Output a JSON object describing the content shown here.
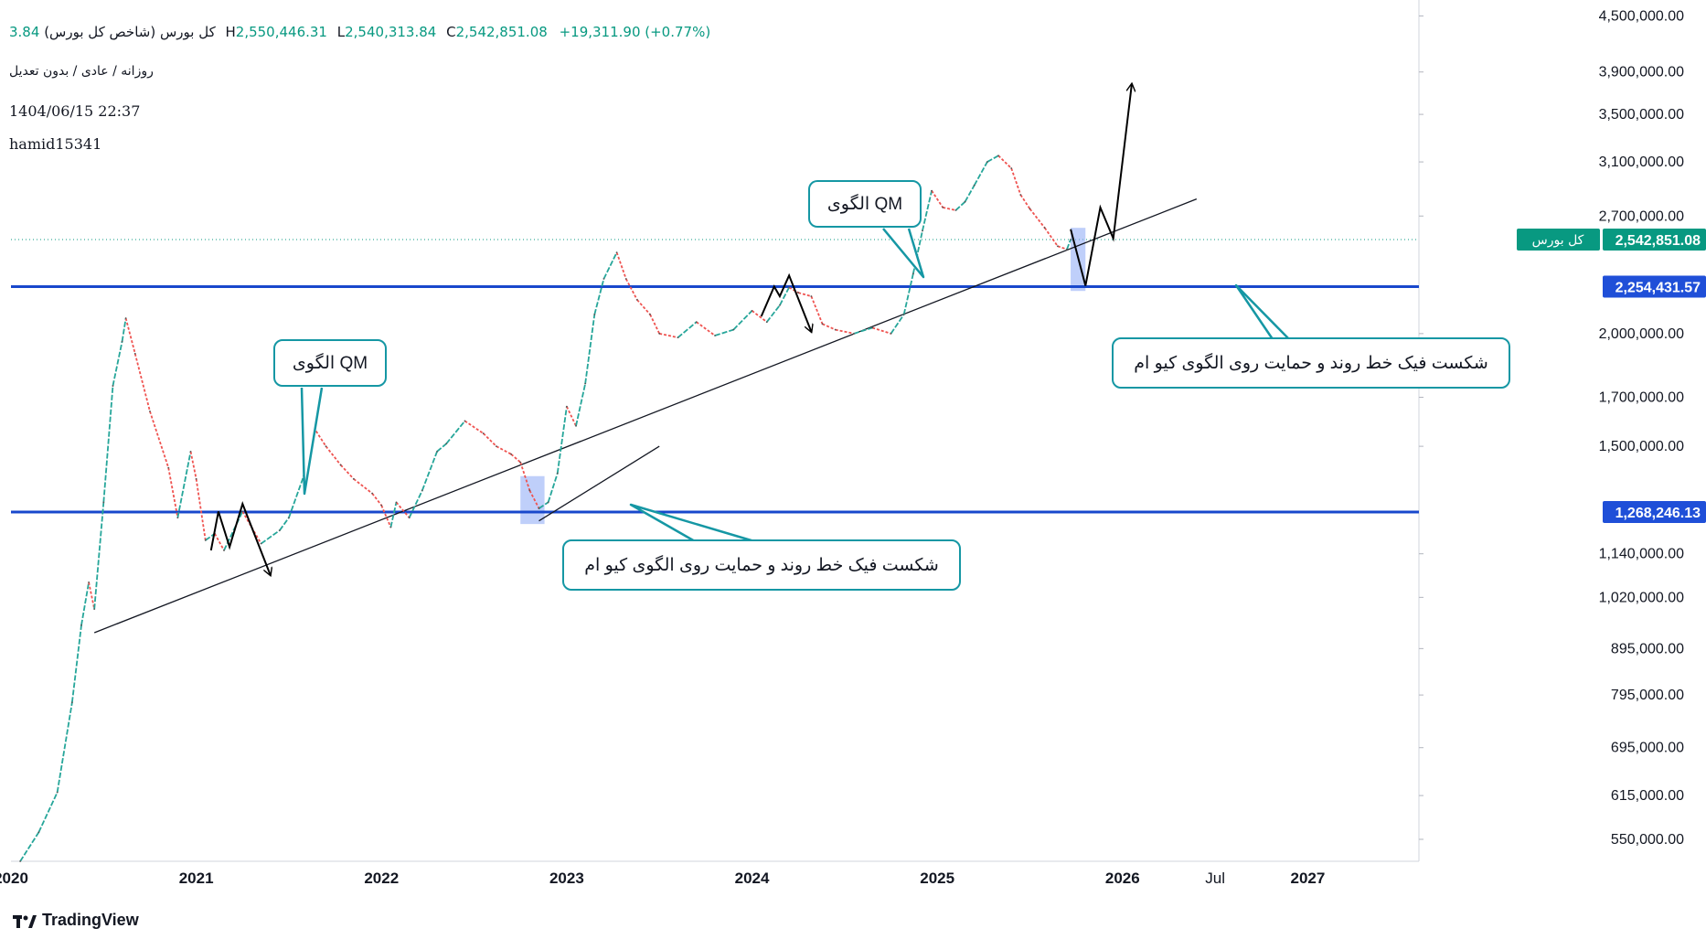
{
  "header": {
    "symbol": "کل بورس (شاخص کل بورس)",
    "open_fragment": "3.84",
    "h_label": "H",
    "high": "2,550,446.31",
    "l_label": "L",
    "low": "2,540,313.84",
    "c_label": "C",
    "close": "2,542,851.08",
    "change": "+19,311.90 (+0.77%)",
    "subtitle": "روزانه / عادی / بدون تعدیل",
    "datetime": "1404/06/15 22:37",
    "user": "hamid15341"
  },
  "brand": {
    "name": "TradingView"
  },
  "annotations": {
    "qm_left": "الگوی QM",
    "qm_right": "الگوی QM",
    "fake_break_left": "شکست فیک خط روند و حمایت روی الگوی کیو ام",
    "fake_break_right": "شکست فیک خط روند و حمایت روی الگوی کیو ام"
  },
  "chart_data": {
    "type": "line",
    "title": "کل بورس (شاخص کل بورس)",
    "scale": "log",
    "ylim": [
      520000,
      4600000
    ],
    "xlim": [
      2020.0,
      2027.6
    ],
    "y_ticks": [
      "4,500,000.00",
      "3,900,000.00",
      "3,500,000.00",
      "3,100,000.00",
      "2,700,000.00",
      "2,000,000.00",
      "1,700,000.00",
      "1,500,000.00",
      "1,140,000.00",
      "1,020,000.00",
      "895,000.00",
      "795,000.00",
      "695,000.00",
      "615,000.00",
      "550,000.00"
    ],
    "x_ticks": [
      "2020",
      "2021",
      "2022",
      "2023",
      "2024",
      "2025",
      "2026",
      "Jul",
      "2027"
    ],
    "series": [
      {
        "name": "کل بورس",
        "points": [
          [
            2020.05,
            520000
          ],
          [
            2020.15,
            560000
          ],
          [
            2020.25,
            620000
          ],
          [
            2020.33,
            780000
          ],
          [
            2020.38,
            950000
          ],
          [
            2020.42,
            1060000
          ],
          [
            2020.45,
            990000
          ],
          [
            2020.5,
            1300000
          ],
          [
            2020.55,
            1750000
          ],
          [
            2020.6,
            1960000
          ],
          [
            2020.62,
            2080000
          ],
          [
            2020.67,
            1900000
          ],
          [
            2020.75,
            1640000
          ],
          [
            2020.85,
            1420000
          ],
          [
            2020.9,
            1250000
          ],
          [
            2020.97,
            1480000
          ],
          [
            2021.0,
            1380000
          ],
          [
            2021.05,
            1180000
          ],
          [
            2021.1,
            1200000
          ],
          [
            2021.15,
            1150000
          ],
          [
            2021.25,
            1270000
          ],
          [
            2021.35,
            1170000
          ],
          [
            2021.45,
            1210000
          ],
          [
            2021.5,
            1250000
          ],
          [
            2021.58,
            1390000
          ],
          [
            2021.62,
            1590000
          ],
          [
            2021.7,
            1500000
          ],
          [
            2021.78,
            1430000
          ],
          [
            2021.85,
            1380000
          ],
          [
            2021.95,
            1330000
          ],
          [
            2022.0,
            1290000
          ],
          [
            2022.05,
            1220000
          ],
          [
            2022.08,
            1300000
          ],
          [
            2022.15,
            1250000
          ],
          [
            2022.22,
            1340000
          ],
          [
            2022.3,
            1480000
          ],
          [
            2022.35,
            1510000
          ],
          [
            2022.45,
            1600000
          ],
          [
            2022.55,
            1550000
          ],
          [
            2022.62,
            1500000
          ],
          [
            2022.7,
            1470000
          ],
          [
            2022.75,
            1440000
          ],
          [
            2022.8,
            1340000
          ],
          [
            2022.85,
            1280000
          ],
          [
            2022.9,
            1300000
          ],
          [
            2022.95,
            1400000
          ],
          [
            2023.0,
            1660000
          ],
          [
            2023.05,
            1580000
          ],
          [
            2023.1,
            1760000
          ],
          [
            2023.15,
            2100000
          ],
          [
            2023.2,
            2300000
          ],
          [
            2023.27,
            2460000
          ],
          [
            2023.32,
            2300000
          ],
          [
            2023.38,
            2180000
          ],
          [
            2023.45,
            2100000
          ],
          [
            2023.5,
            2000000
          ],
          [
            2023.6,
            1980000
          ],
          [
            2023.7,
            2060000
          ],
          [
            2023.8,
            1990000
          ],
          [
            2023.9,
            2020000
          ],
          [
            2024.0,
            2120000
          ],
          [
            2024.08,
            2060000
          ],
          [
            2024.15,
            2150000
          ],
          [
            2024.2,
            2250000
          ],
          [
            2024.25,
            2220000
          ],
          [
            2024.32,
            2200000
          ],
          [
            2024.38,
            2050000
          ],
          [
            2024.45,
            2020000
          ],
          [
            2024.55,
            2000000
          ],
          [
            2024.65,
            2030000
          ],
          [
            2024.75,
            2000000
          ],
          [
            2024.82,
            2100000
          ],
          [
            2024.87,
            2330000
          ],
          [
            2024.92,
            2600000
          ],
          [
            2024.97,
            2880000
          ],
          [
            2025.03,
            2760000
          ],
          [
            2025.1,
            2740000
          ],
          [
            2025.15,
            2800000
          ],
          [
            2025.2,
            2920000
          ],
          [
            2025.27,
            3100000
          ],
          [
            2025.33,
            3150000
          ],
          [
            2025.4,
            3050000
          ],
          [
            2025.45,
            2850000
          ],
          [
            2025.5,
            2750000
          ],
          [
            2025.58,
            2620000
          ],
          [
            2025.65,
            2500000
          ],
          [
            2025.7,
            2480000
          ],
          [
            2025.72,
            2542851
          ]
        ]
      }
    ],
    "levels": [
      {
        "name": "support-1",
        "value": 2254431.57,
        "label": "2,254,431.57"
      },
      {
        "name": "support-2",
        "value": 1268246.13,
        "label": "1,268,246.13"
      }
    ],
    "current": {
      "label": "کل بورس",
      "value": 2542851.08,
      "text": "2,542,851.08"
    },
    "trendlines": [
      {
        "name": "lower-trendline",
        "from": [
          2020.45,
          932000
        ],
        "to": [
          2026.4,
          2820000
        ]
      },
      {
        "name": "inner-trendline",
        "from": [
          2022.85,
          1240000
        ],
        "to": [
          2023.5,
          1500000
        ]
      }
    ],
    "qm_paths": [
      [
        [
          2021.08,
          1150000
        ],
        [
          2021.12,
          1270000
        ],
        [
          2021.18,
          1160000
        ],
        [
          2021.25,
          1295000
        ],
        [
          2021.4,
          1080000
        ]
      ],
      [
        [
          2024.05,
          2090000
        ],
        [
          2024.12,
          2255000
        ],
        [
          2024.15,
          2200000
        ],
        [
          2024.2,
          2320000
        ],
        [
          2024.32,
          2010000
        ]
      ]
    ],
    "projection": [
      [
        2025.72,
        2610000
      ],
      [
        2025.8,
        2260000
      ],
      [
        2025.88,
        2760000
      ],
      [
        2025.95,
        2550000
      ],
      [
        2026.05,
        3780000
      ]
    ]
  }
}
